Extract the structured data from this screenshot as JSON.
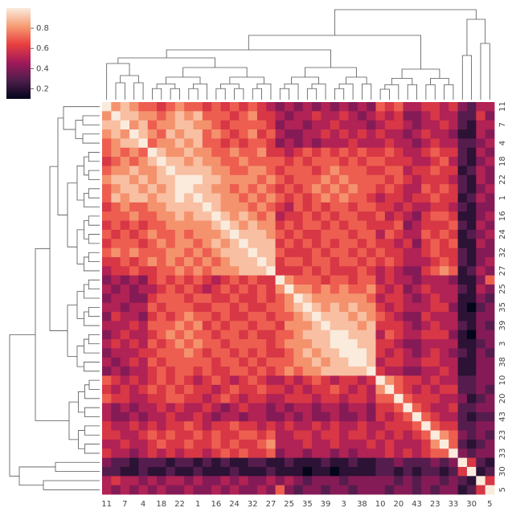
{
  "chart_data": {
    "type": "heatmap",
    "labels": [
      "11",
      null,
      "7",
      null,
      "4",
      null,
      "18",
      null,
      "22",
      null,
      "1",
      null,
      "16",
      null,
      "24",
      null,
      "32",
      null,
      "27",
      null,
      "25",
      null,
      "35",
      null,
      "39",
      null,
      "3",
      null,
      "38",
      null,
      "10",
      null,
      "20",
      null,
      "43",
      null,
      "23",
      null,
      "33",
      null,
      "30",
      null,
      "5"
    ],
    "zlim": [
      0.1,
      1.0
    ],
    "zticks": [
      0.2,
      0.4,
      0.6,
      0.8
    ],
    "colormap": [
      "#03051a",
      "#4c1d4b",
      "#a11a5b",
      "#e83f3f",
      "#f69c73",
      "#faebdd"
    ],
    "matrix_lower": [
      [
        1
      ],
      [
        0.8,
        1
      ],
      [
        0.9,
        0.9,
        1
      ],
      [
        0.8,
        0.9,
        0.8,
        1
      ],
      [
        0.7,
        0.8,
        0.9,
        0.9,
        1
      ],
      [
        0.7,
        0.8,
        0.7,
        0.8,
        0.7,
        1
      ],
      [
        0.6,
        0.7,
        0.8,
        0.7,
        0.8,
        0.9,
        1
      ],
      [
        0.7,
        0.8,
        0.8,
        0.9,
        0.8,
        0.8,
        0.9,
        1
      ],
      [
        0.8,
        0.9,
        0.9,
        0.8,
        0.9,
        0.8,
        0.9,
        0.9,
        1
      ],
      [
        0.7,
        0.8,
        0.9,
        0.9,
        0.8,
        0.9,
        0.8,
        0.9,
        1.0,
        1
      ],
      [
        0.7,
        0.9,
        0.8,
        0.9,
        0.9,
        0.8,
        0.9,
        0.9,
        1.0,
        0.9,
        1
      ],
      [
        0.6,
        0.7,
        0.8,
        0.7,
        0.7,
        0.8,
        0.8,
        0.9,
        0.9,
        0.9,
        0.9,
        1
      ],
      [
        0.7,
        0.7,
        0.7,
        0.8,
        0.7,
        0.7,
        0.8,
        0.8,
        0.9,
        0.8,
        0.9,
        0.9,
        1
      ],
      [
        0.6,
        0.7,
        0.6,
        0.7,
        0.6,
        0.7,
        0.7,
        0.8,
        0.8,
        0.8,
        0.8,
        0.8,
        0.9,
        1
      ],
      [
        0.7,
        0.6,
        0.7,
        0.6,
        0.7,
        0.8,
        0.7,
        0.7,
        0.8,
        0.7,
        0.8,
        0.8,
        0.8,
        0.9,
        1
      ],
      [
        0.6,
        0.7,
        0.7,
        0.7,
        0.6,
        0.7,
        0.8,
        0.7,
        0.8,
        0.8,
        0.7,
        0.8,
        0.9,
        0.8,
        0.9,
        1
      ],
      [
        0.7,
        0.8,
        0.7,
        0.8,
        0.7,
        0.7,
        0.7,
        0.8,
        0.8,
        0.7,
        0.8,
        0.7,
        0.8,
        0.9,
        0.9,
        0.9,
        1
      ],
      [
        0.6,
        0.6,
        0.7,
        0.6,
        0.7,
        0.8,
        0.7,
        0.8,
        0.7,
        0.8,
        0.7,
        0.8,
        0.7,
        0.8,
        0.9,
        0.9,
        0.9,
        1
      ],
      [
        0.5,
        0.6,
        0.6,
        0.7,
        0.6,
        0.6,
        0.7,
        0.7,
        0.8,
        0.7,
        0.8,
        0.7,
        0.8,
        0.8,
        0.8,
        0.9,
        0.9,
        0.9,
        1
      ],
      [
        0.4,
        0.5,
        0.4,
        0.5,
        0.4,
        0.6,
        0.7,
        0.6,
        0.7,
        0.6,
        0.7,
        0.6,
        0.5,
        0.6,
        0.7,
        0.6,
        0.7,
        0.6,
        0.6,
        1
      ],
      [
        0.5,
        0.4,
        0.5,
        0.4,
        0.5,
        0.5,
        0.6,
        0.7,
        0.6,
        0.7,
        0.6,
        0.5,
        0.6,
        0.7,
        0.6,
        0.7,
        0.6,
        0.7,
        0.6,
        0.8,
        1
      ],
      [
        0.4,
        0.5,
        0.5,
        0.4,
        0.4,
        0.6,
        0.7,
        0.7,
        0.7,
        0.6,
        0.7,
        0.7,
        0.6,
        0.6,
        0.7,
        0.6,
        0.6,
        0.7,
        0.6,
        0.7,
        0.8,
        1
      ],
      [
        0.5,
        0.5,
        0.4,
        0.5,
        0.5,
        0.7,
        0.6,
        0.7,
        0.7,
        0.7,
        0.6,
        0.6,
        0.7,
        0.7,
        0.6,
        0.7,
        0.6,
        0.6,
        0.7,
        0.7,
        0.8,
        0.9,
        1
      ],
      [
        0.4,
        0.6,
        0.5,
        0.5,
        0.4,
        0.6,
        0.7,
        0.6,
        0.7,
        0.8,
        0.7,
        0.7,
        0.6,
        0.7,
        0.6,
        0.6,
        0.7,
        0.7,
        0.6,
        0.7,
        0.7,
        0.8,
        0.9,
        1
      ],
      [
        0.5,
        0.5,
        0.5,
        0.6,
        0.5,
        0.7,
        0.7,
        0.7,
        0.8,
        0.7,
        0.8,
        0.6,
        0.7,
        0.6,
        0.7,
        0.7,
        0.6,
        0.7,
        0.7,
        0.6,
        0.8,
        0.8,
        0.8,
        0.9,
        1
      ],
      [
        0.4,
        0.5,
        0.6,
        0.5,
        0.5,
        0.6,
        0.7,
        0.8,
        0.7,
        0.8,
        0.7,
        0.7,
        0.6,
        0.7,
        0.7,
        0.6,
        0.7,
        0.6,
        0.6,
        0.7,
        0.7,
        0.8,
        0.9,
        0.9,
        0.9,
        1
      ],
      [
        0.5,
        0.6,
        0.5,
        0.6,
        0.5,
        0.7,
        0.6,
        0.7,
        0.8,
        0.7,
        0.8,
        0.7,
        0.7,
        0.6,
        0.7,
        0.7,
        0.7,
        0.7,
        0.6,
        0.7,
        0.8,
        0.8,
        0.8,
        0.9,
        0.9,
        1.0,
        1
      ],
      [
        0.4,
        0.5,
        0.5,
        0.5,
        0.6,
        0.6,
        0.7,
        0.7,
        0.7,
        0.8,
        0.7,
        0.6,
        0.7,
        0.7,
        0.6,
        0.7,
        0.6,
        0.7,
        0.6,
        0.6,
        0.7,
        0.8,
        0.9,
        0.8,
        0.9,
        0.9,
        1.0,
        1
      ],
      [
        0.5,
        0.4,
        0.5,
        0.6,
        0.5,
        0.7,
        0.6,
        0.7,
        0.7,
        0.7,
        0.7,
        0.7,
        0.6,
        0.7,
        0.7,
        0.6,
        0.7,
        0.6,
        0.7,
        0.7,
        0.7,
        0.8,
        0.8,
        0.9,
        0.8,
        0.9,
        0.9,
        1.0,
        1
      ],
      [
        0.4,
        0.5,
        0.4,
        0.5,
        0.5,
        0.6,
        0.7,
        0.6,
        0.7,
        0.7,
        0.6,
        0.7,
        0.6,
        0.6,
        0.7,
        0.7,
        0.6,
        0.7,
        0.6,
        0.7,
        0.8,
        0.7,
        0.8,
        0.8,
        0.9,
        0.9,
        0.9,
        0.9,
        0.9,
        1
      ],
      [
        0.7,
        0.6,
        0.5,
        0.6,
        0.5,
        0.6,
        0.7,
        0.6,
        0.7,
        0.6,
        0.5,
        0.6,
        0.7,
        0.6,
        0.5,
        0.6,
        0.7,
        0.6,
        0.5,
        0.5,
        0.6,
        0.5,
        0.6,
        0.7,
        0.6,
        0.5,
        0.6,
        0.6,
        0.5,
        0.6,
        1
      ],
      [
        0.6,
        0.5,
        0.6,
        0.5,
        0.6,
        0.7,
        0.6,
        0.7,
        0.6,
        0.7,
        0.6,
        0.6,
        0.5,
        0.6,
        0.7,
        0.6,
        0.6,
        0.7,
        0.6,
        0.6,
        0.5,
        0.6,
        0.5,
        0.6,
        0.6,
        0.7,
        0.6,
        0.5,
        0.6,
        0.5,
        0.8,
        1
      ],
      [
        0.7,
        0.6,
        0.6,
        0.5,
        0.5,
        0.6,
        0.6,
        0.7,
        0.7,
        0.6,
        0.6,
        0.5,
        0.6,
        0.7,
        0.6,
        0.5,
        0.6,
        0.6,
        0.5,
        0.5,
        0.6,
        0.6,
        0.6,
        0.5,
        0.6,
        0.6,
        0.5,
        0.6,
        0.6,
        0.5,
        0.7,
        0.7,
        1
      ],
      [
        0.5,
        0.4,
        0.5,
        0.4,
        0.5,
        0.5,
        0.6,
        0.5,
        0.6,
        0.5,
        0.5,
        0.6,
        0.5,
        0.4,
        0.5,
        0.6,
        0.5,
        0.5,
        0.4,
        0.5,
        0.4,
        0.5,
        0.5,
        0.4,
        0.5,
        0.5,
        0.4,
        0.5,
        0.5,
        0.4,
        0.6,
        0.6,
        0.7,
        1
      ],
      [
        0.5,
        0.4,
        0.4,
        0.5,
        0.4,
        0.5,
        0.5,
        0.6,
        0.5,
        0.5,
        0.6,
        0.5,
        0.4,
        0.5,
        0.5,
        0.4,
        0.5,
        0.5,
        0.4,
        0.4,
        0.5,
        0.4,
        0.5,
        0.4,
        0.4,
        0.5,
        0.4,
        0.4,
        0.5,
        0.4,
        0.6,
        0.5,
        0.6,
        0.7,
        1
      ],
      [
        0.6,
        0.5,
        0.5,
        0.6,
        0.5,
        0.6,
        0.5,
        0.6,
        0.6,
        0.7,
        0.6,
        0.5,
        0.6,
        0.6,
        0.7,
        0.6,
        0.6,
        0.5,
        0.6,
        0.5,
        0.6,
        0.5,
        0.5,
        0.6,
        0.5,
        0.6,
        0.5,
        0.5,
        0.6,
        0.5,
        0.5,
        0.6,
        0.6,
        0.6,
        0.7,
        1
      ],
      [
        0.6,
        0.6,
        0.5,
        0.5,
        0.6,
        0.7,
        0.6,
        0.7,
        0.6,
        0.6,
        0.7,
        0.6,
        0.7,
        0.6,
        0.6,
        0.7,
        0.7,
        0.6,
        0.7,
        0.5,
        0.5,
        0.6,
        0.6,
        0.5,
        0.6,
        0.6,
        0.5,
        0.6,
        0.6,
        0.5,
        0.6,
        0.5,
        0.6,
        0.5,
        0.6,
        0.7,
        1
      ],
      [
        0.5,
        0.5,
        0.6,
        0.5,
        0.5,
        0.6,
        0.7,
        0.6,
        0.6,
        0.7,
        0.6,
        0.6,
        0.7,
        0.6,
        0.7,
        0.6,
        0.6,
        0.7,
        0.8,
        0.5,
        0.5,
        0.5,
        0.6,
        0.5,
        0.5,
        0.6,
        0.5,
        0.5,
        0.5,
        0.6,
        0.5,
        0.6,
        0.5,
        0.5,
        0.5,
        0.6,
        0.8,
        1
      ],
      [
        0.6,
        0.5,
        0.5,
        0.4,
        0.5,
        0.6,
        0.5,
        0.6,
        0.5,
        0.6,
        0.6,
        0.5,
        0.6,
        0.7,
        0.6,
        0.7,
        0.6,
        0.6,
        0.7,
        0.4,
        0.5,
        0.5,
        0.4,
        0.5,
        0.5,
        0.4,
        0.5,
        0.4,
        0.5,
        0.5,
        0.5,
        0.6,
        0.5,
        0.6,
        0.5,
        0.6,
        0.7,
        0.7,
        1
      ],
      [
        0.4,
        0.3,
        0.3,
        0.2,
        0.3,
        0.3,
        0.3,
        0.2,
        0.3,
        0.3,
        0.2,
        0.3,
        0.2,
        0.3,
        0.2,
        0.2,
        0.3,
        0.3,
        0.2,
        0.2,
        0.3,
        0.2,
        0.2,
        0.2,
        0.3,
        0.2,
        0.2,
        0.3,
        0.2,
        0.2,
        0.3,
        0.3,
        0.4,
        0.3,
        0.3,
        0.3,
        0.4,
        0.3,
        0.4,
        1
      ],
      [
        0.3,
        0.3,
        0.2,
        0.2,
        0.3,
        0.2,
        0.2,
        0.3,
        0.2,
        0.2,
        0.3,
        0.2,
        0.2,
        0.2,
        0.3,
        0.2,
        0.2,
        0.2,
        0.3,
        0.2,
        0.2,
        0.2,
        0.1,
        0.2,
        0.2,
        0.1,
        0.2,
        0.2,
        0.2,
        0.2,
        0.3,
        0.3,
        0.2,
        0.3,
        0.2,
        0.3,
        0.3,
        0.2,
        0.3,
        0.6,
        1
      ],
      [
        0.5,
        0.6,
        0.5,
        0.5,
        0.4,
        0.5,
        0.4,
        0.5,
        0.5,
        0.4,
        0.5,
        0.4,
        0.4,
        0.5,
        0.4,
        0.5,
        0.4,
        0.4,
        0.5,
        0.4,
        0.5,
        0.4,
        0.3,
        0.4,
        0.4,
        0.4,
        0.3,
        0.4,
        0.4,
        0.4,
        0.4,
        0.4,
        0.3,
        0.4,
        0.3,
        0.4,
        0.4,
        0.3,
        0.4,
        0.3,
        0.2,
        1
      ],
      [
        0.5,
        0.4,
        0.5,
        0.4,
        0.5,
        0.4,
        0.5,
        0.4,
        0.4,
        0.5,
        0.4,
        0.4,
        0.5,
        0.4,
        0.5,
        0.4,
        0.4,
        0.5,
        0.4,
        0.7,
        0.4,
        0.3,
        0.4,
        0.4,
        0.3,
        0.4,
        0.4,
        0.3,
        0.4,
        0.4,
        0.4,
        0.3,
        0.4,
        0.4,
        0.3,
        0.4,
        0.3,
        0.4,
        0.4,
        0.2,
        0.3,
        0.6,
        1
      ]
    ]
  }
}
